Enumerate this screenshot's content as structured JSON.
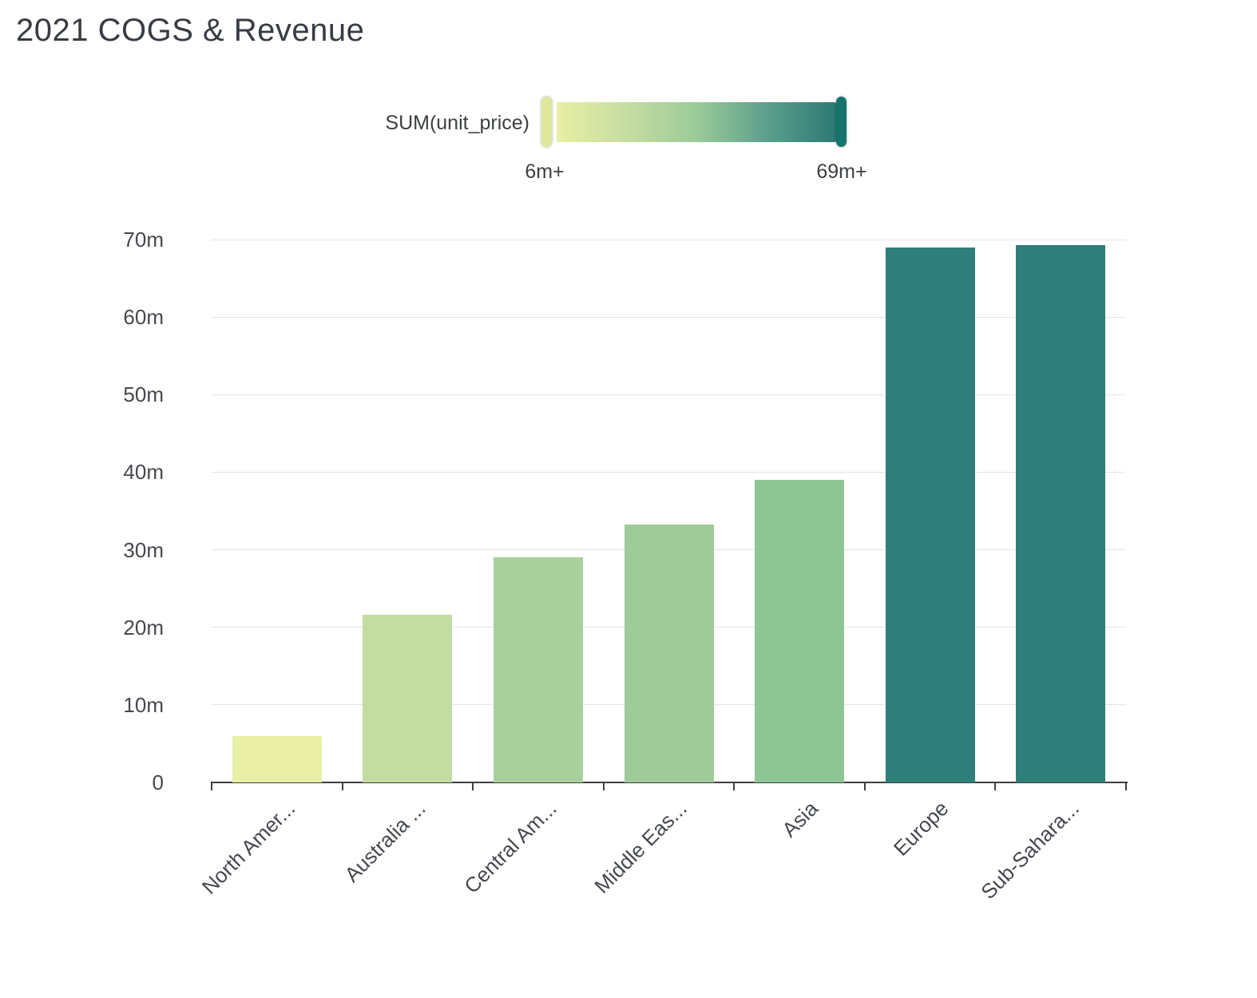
{
  "chart": {
    "title": "2021 COGS & Revenue"
  },
  "legend": {
    "label": "SUM(unit_price)",
    "min_label": "6m+",
    "max_label": "69m+",
    "gradient_colors": [
      "#e9efa5",
      "#c6dda1",
      "#9bcb98",
      "#5d9f8d",
      "#2c7a75"
    ],
    "min_handle_color": "#dfe89b",
    "max_handle_color": "#15756d"
  },
  "chart_data": {
    "type": "bar",
    "title": "2021 COGS & Revenue",
    "categories": [
      "North Amer...",
      "Australia ...",
      "Central Am...",
      "Middle Eas...",
      "Asia",
      "Europe",
      "Sub-Sahara..."
    ],
    "values": [
      6.0,
      21.6,
      29.0,
      33.2,
      39.0,
      69.0,
      69.3
    ],
    "unit": "m",
    "color_by": "SUM(unit_price)",
    "bar_colors": [
      "#e9efa5",
      "#c3dca2",
      "#a8d09c",
      "#9ecb99",
      "#8ec595",
      "#2f7e79",
      "#2f7e79"
    ],
    "ylim": [
      0,
      70
    ],
    "yticks": [
      0,
      10,
      20,
      30,
      40,
      50,
      60,
      70
    ],
    "ytick_labels": [
      "0",
      "10m",
      "20m",
      "30m",
      "40m",
      "50m",
      "60m",
      "70m"
    ],
    "xlabel": "",
    "ylabel": "",
    "grid": true,
    "legend_position": "top"
  },
  "colors": {
    "grid": "#e4e4e4",
    "axis": "#3f3f3f",
    "text": "#45494e",
    "title": "#383c42",
    "background": "#ffffff"
  }
}
